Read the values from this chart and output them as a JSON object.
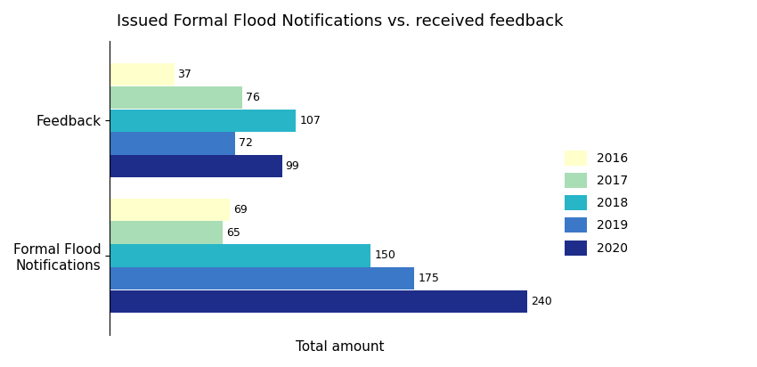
{
  "title": "Issued Formal Flood Notifications vs. received feedback",
  "xlabel": "Total amount",
  "categories": [
    "Feedback",
    "Formal Flood\nNotifications"
  ],
  "years": [
    "2016",
    "2017",
    "2018",
    "2019",
    "2020"
  ],
  "colors": [
    "#ffffcc",
    "#a8ddb5",
    "#28b5c8",
    "#3c78c8",
    "#1e2d8a"
  ],
  "feedback_values": [
    37,
    76,
    107,
    72,
    99
  ],
  "notifications_values": [
    69,
    65,
    150,
    175,
    240
  ],
  "bar_height": 0.12,
  "figsize": [
    8.5,
    4.12
  ],
  "dpi": 100
}
